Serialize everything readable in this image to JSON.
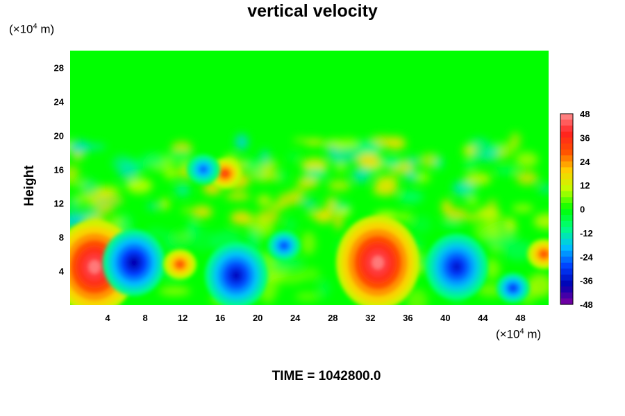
{
  "chart_data": {
    "type": "heatmap",
    "title": "vertical velocity",
    "ylabel": "Height",
    "x_unit": {
      "prefix": "(×10",
      "exp": "4",
      "suffix": " m)"
    },
    "y_unit": {
      "prefix": "(×10",
      "exp": "4",
      "suffix": " m)"
    },
    "xlim": [
      0,
      51
    ],
    "ylim": [
      0,
      30
    ],
    "x_ticks": [
      "4",
      "8",
      "12",
      "16",
      "20",
      "24",
      "28",
      "32",
      "36",
      "40",
      "44",
      "48"
    ],
    "y_ticks": [
      "4",
      "8",
      "12",
      "16",
      "20",
      "24",
      "28"
    ],
    "colorbar": {
      "range": [
        -48,
        48
      ],
      "ticks": [
        "48",
        "36",
        "24",
        "12",
        "0",
        "-12",
        "-24",
        "-36",
        "-48"
      ]
    },
    "features": [
      {
        "x": 2.6,
        "y": 4.5,
        "value": 46
      },
      {
        "x": 32.8,
        "y": 5.0,
        "value": 46
      },
      {
        "x": 6.8,
        "y": 5.0,
        "value": -38
      },
      {
        "x": 41.2,
        "y": 4.5,
        "value": -34
      },
      {
        "x": 11.7,
        "y": 4.8,
        "value": 30
      },
      {
        "x": 17.7,
        "y": 3.5,
        "value": -36
      },
      {
        "x": 22.8,
        "y": 7.0,
        "value": -28
      },
      {
        "x": 16.5,
        "y": 15.5,
        "value": 32
      },
      {
        "x": 14.2,
        "y": 16.0,
        "value": -26
      },
      {
        "x": 50.5,
        "y": 6.0,
        "value": 30
      },
      {
        "x": 47.2,
        "y": 2.0,
        "value": -30
      }
    ],
    "time_label": "TIME = ",
    "time_value": "1042800.0"
  },
  "colors": {
    "background_field": "#00ff00",
    "scale": [
      "#8000a0",
      "#0000b0",
      "#0040ff",
      "#00c0ff",
      "#00ff80",
      "#00ff00",
      "#c0ff00",
      "#ffd000",
      "#ff5000",
      "#ff2020",
      "#ff9090"
    ]
  }
}
